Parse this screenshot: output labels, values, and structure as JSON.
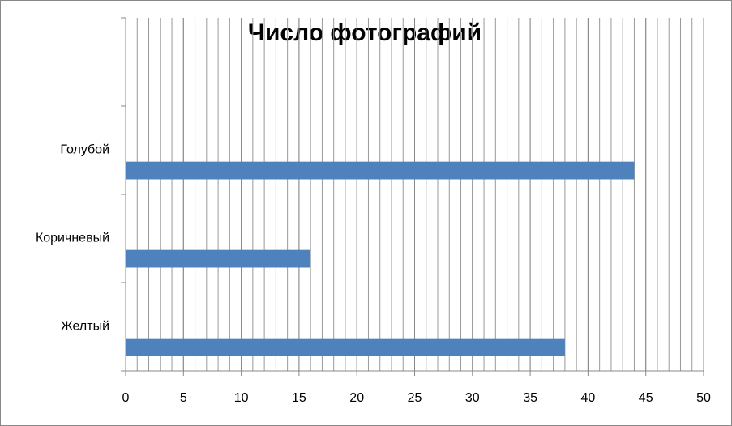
{
  "chart_data": {
    "type": "hbar",
    "title": "Число фотографий",
    "categories": [
      "Желтый",
      "Коричневый",
      "Голубой",
      null
    ],
    "values": [
      38,
      16,
      44,
      null
    ],
    "color": "#4f81bd",
    "xlim": [
      0,
      50
    ],
    "xticks": [
      0,
      5,
      10,
      15,
      20,
      25,
      30,
      35,
      40,
      45,
      50
    ],
    "grid": true,
    "minor_grid_step": 1
  }
}
